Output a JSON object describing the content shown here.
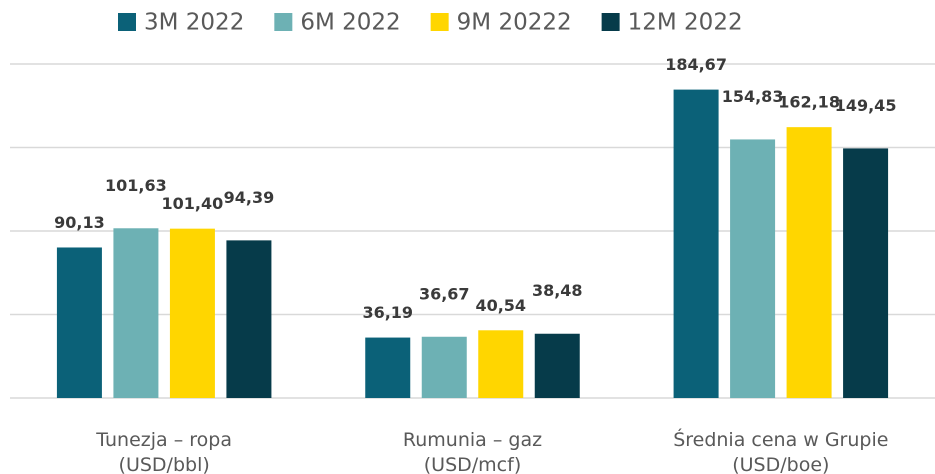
{
  "chart_data": {
    "type": "bar",
    "categories": [
      "Tunezja – ropa\n(USD/bbl)",
      "Rumunia – gaz\n(USD/mcf)",
      "Średnia cena w Grupie\n(USD/boe)"
    ],
    "series": [
      {
        "name": "3M 2022",
        "color": "#0b6178",
        "values": [
          90.13,
          36.19,
          184.67
        ],
        "value_labels": [
          "90,13",
          "36,19",
          "184,67"
        ]
      },
      {
        "name": "6M 2022",
        "color": "#6db1b4",
        "values": [
          101.63,
          36.67,
          154.83
        ],
        "value_labels": [
          "101,63",
          "36,67",
          "154,83"
        ]
      },
      {
        "name": "9M 20222",
        "color": "#ffd600",
        "values": [
          101.4,
          40.54,
          162.18
        ],
        "value_labels": [
          "101,40",
          "40,54",
          "162,18"
        ]
      },
      {
        "name": "12M 2022",
        "color": "#063b4a",
        "values": [
          94.39,
          38.48,
          149.45
        ],
        "value_labels": [
          "94,39",
          "38,48",
          "149,45"
        ]
      }
    ],
    "ylim": [
      0,
      200
    ],
    "yticks": [
      0,
      50,
      100,
      150,
      200
    ],
    "grid": true,
    "legend": "top"
  }
}
